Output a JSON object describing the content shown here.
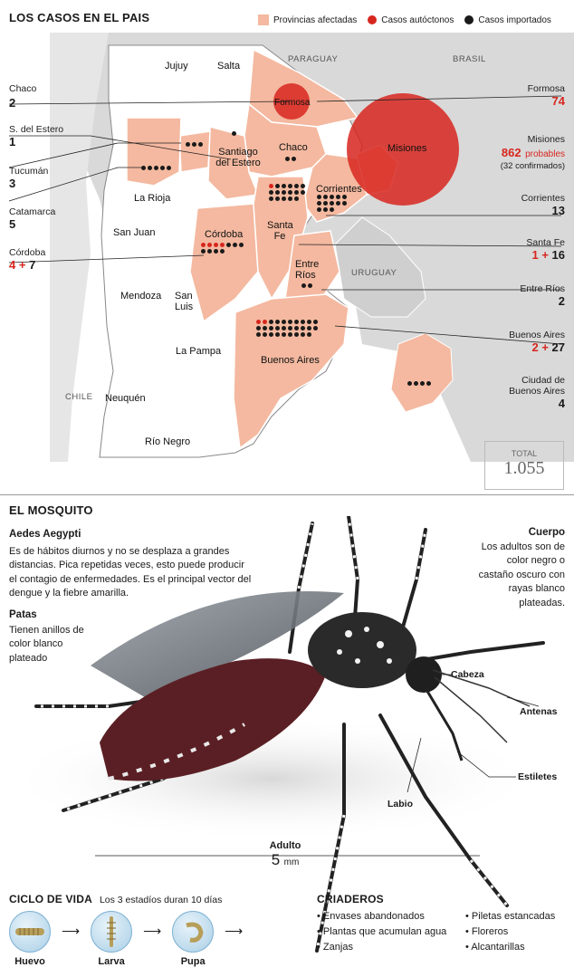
{
  "map_section": {
    "title": "LOS CASOS EN EL PAIS",
    "legend": {
      "affected": "Provincias afectadas",
      "autoctonos": "Casos autóctonos",
      "importados": "Casos importados"
    },
    "countries": {
      "paraguay": "PARAGUAY",
      "brasil": "BRASIL",
      "chile": "CHILE",
      "uruguay": "URUGUAY"
    },
    "map_labels": {
      "jujuy": "Jujuy",
      "salta": "Salta",
      "formosa": "Formosa",
      "chaco": "Chaco",
      "misiones": "Misiones",
      "santiago": "Santiago del Estero",
      "corrientes": "Corrientes",
      "la_rioja": "La Rioja",
      "san_juan": "San Juan",
      "cordoba": "Córdoba",
      "santa_fe": "Santa Fe",
      "entre_rios": "Entre Ríos",
      "mendoza": "Mendoza",
      "san_luis": "San Luis",
      "la_pampa": "La Pampa",
      "buenos_aires": "Buenos Aires",
      "neuquen": "Neuquén",
      "rio_negro": "Río Negro"
    },
    "left_list": [
      {
        "name": "Chaco",
        "imported": "2"
      },
      {
        "name": "S. del Estero",
        "imported": "1"
      },
      {
        "name": "Tucumán",
        "imported": "3"
      },
      {
        "name": "Catamarca",
        "imported": "5"
      },
      {
        "name": "Córdoba",
        "auto": "4",
        "plus": "+",
        "imported": "7"
      }
    ],
    "right_list": {
      "formosa": {
        "name": "Formosa",
        "auto": "74"
      },
      "misiones": {
        "name": "Misiones",
        "auto": "862",
        "probables": "probables",
        "confirmed": "(32 confirmados)"
      },
      "corrientes": {
        "name": "Corrientes",
        "imported": "13"
      },
      "santa_fe": {
        "name": "Santa Fe",
        "auto": "1",
        "plus": "+",
        "imported": "16"
      },
      "entre_rios": {
        "name": "Entre Ríos",
        "imported": "2"
      },
      "buenos_aires": {
        "name": "Buenos Aires",
        "auto": "2",
        "plus": "+",
        "imported": "27"
      },
      "caba": {
        "name": "Ciudad de Buenos Aires",
        "name_line1": "Ciudad de",
        "name_line2": "Buenos Aires",
        "imported": "4"
      }
    },
    "total": {
      "label": "TOTAL",
      "value": "1.055"
    },
    "colors": {
      "affected": "#f4b9a0",
      "autoctono": "#d7261e",
      "importado": "#1a1a1a",
      "neighbor": "#d9d9d9"
    }
  },
  "mosquito_section": {
    "title": "EL MOSQUITO",
    "species": "Aedes Aegypti",
    "description": "Es de hábitos diurnos y no se desplaza a grandes distancias. Pica repetidas veces, esto puede producir el contagio de enfermedades. Es el principal vector del dengue y la fiebre amarilla.",
    "patas_title": "Patas",
    "patas_text": "Tienen anillos de color blanco plateado",
    "cuerpo_title": "Cuerpo",
    "cuerpo_text": "Los adultos son de color negro o castaño oscuro con rayas blanco plateadas.",
    "parts": {
      "cabeza": "Cabeza",
      "antenas": "Antenas",
      "estiletes": "Estiletes",
      "labio": "Labio"
    },
    "scale": {
      "label": "Adulto",
      "value": "5",
      "unit": "mm"
    }
  },
  "ciclo": {
    "title": "CICLO DE VIDA",
    "subtitle": "Los 3 estadíos duran 10 días",
    "stages": [
      "Huevo",
      "Larva",
      "Pupa"
    ]
  },
  "criaderos": {
    "title": "CRIADEROS",
    "col1": [
      "Envases abandonados",
      "Plantas que acumulan agua",
      "Zanjas"
    ],
    "col2": [
      "Piletas estancadas",
      "Floreros",
      "Alcantarillas"
    ]
  }
}
